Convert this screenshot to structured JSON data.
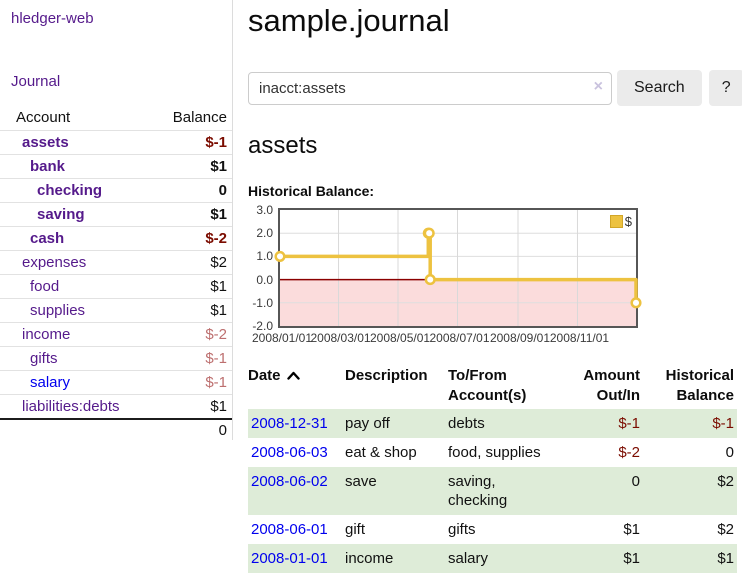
{
  "colors": {
    "link_purple": "#551a8b",
    "link_blue": "#0000ee",
    "negative_strong": "#7b0c00",
    "negative_muted": "#bd6f6f",
    "row_green": "#deecd8",
    "series_gold": "#edc240",
    "negative_region_pink": "#fbdcdc",
    "zero_line_red": "#8b0000"
  },
  "sidebar": {
    "app_title": "hledger-web",
    "nav_journal": "Journal",
    "header": {
      "account": "Account",
      "balance": "Balance"
    },
    "accounts": [
      {
        "label": "assets",
        "level": 1,
        "bold": true,
        "balance": "$-1",
        "balance_class": "neg-strong",
        "link": "visited"
      },
      {
        "label": "bank",
        "level": 2,
        "bold": true,
        "balance": "$1",
        "balance_class": "normal",
        "link": "visited"
      },
      {
        "label": "checking",
        "level": 3,
        "bold": true,
        "balance": "0",
        "balance_class": "normal",
        "link": "visited"
      },
      {
        "label": "saving",
        "level": 3,
        "bold": true,
        "balance": "$1",
        "balance_class": "normal",
        "link": "visited"
      },
      {
        "label": "cash",
        "level": 2,
        "bold": true,
        "balance": "$-2",
        "balance_class": "neg-strong",
        "link": "visited"
      },
      {
        "label": "expenses",
        "level": 1,
        "bold": false,
        "balance": "$2",
        "balance_class": "normal",
        "link": "visited"
      },
      {
        "label": "food",
        "level": 2,
        "bold": false,
        "balance": "$1",
        "balance_class": "normal",
        "link": "visited"
      },
      {
        "label": "supplies",
        "level": 2,
        "bold": false,
        "balance": "$1",
        "balance_class": "normal",
        "link": "visited"
      },
      {
        "label": "income",
        "level": 1,
        "bold": false,
        "balance": "$-2",
        "balance_class": "neg-muted",
        "link": "visited"
      },
      {
        "label": "gifts",
        "level": 2,
        "bold": false,
        "balance": "$-1",
        "balance_class": "neg-muted",
        "link": "visited"
      },
      {
        "label": "salary",
        "level": 2,
        "bold": false,
        "balance": "$-1",
        "balance_class": "neg-muted",
        "link": "unvisited"
      },
      {
        "label": "liabilities:debts",
        "level": 1,
        "bold": false,
        "balance": "$1",
        "balance_class": "normal",
        "link": "visited"
      }
    ],
    "total_balance": "0"
  },
  "main": {
    "title": "sample.journal",
    "search": {
      "value": "inacct:assets",
      "clear_icon": "×",
      "button_label": "Search",
      "help_label": "?"
    },
    "account_heading": "assets",
    "chart_label": "Historical Balance:",
    "chart_data": {
      "type": "line",
      "title": "Historical Balance",
      "step": true,
      "series": [
        {
          "name": "$",
          "color": "#edc240",
          "points": [
            [
              "2008-01-01",
              1
            ],
            [
              "2008-06-01",
              2
            ],
            [
              "2008-06-02",
              2
            ],
            [
              "2008-06-03",
              0
            ],
            [
              "2008-12-31",
              -1
            ]
          ]
        }
      ],
      "x_range": [
        "2008-01-01",
        "2008-12-31"
      ],
      "ylim": [
        -2,
        3
      ],
      "y_ticks": [
        "3.0",
        "2.0",
        "1.0",
        "0.0",
        "-1.0",
        "-2.0"
      ],
      "x_ticks": [
        "2008/01/01",
        "2008/03/01",
        "2008/05/01",
        "2008/07/01",
        "2008/09/01",
        "2008/11/01"
      ],
      "grid": true,
      "legend_position": "top-right",
      "negative_region_color": "#fbdcdc",
      "zero_line_color": "#8b0000"
    },
    "register_table": {
      "columns": [
        {
          "label": "Date",
          "align": "left",
          "sort": "asc"
        },
        {
          "label": "Description",
          "align": "left"
        },
        {
          "label": "To/From Account(s)",
          "align": "left"
        },
        {
          "label": "Amount Out/In",
          "align": "right"
        },
        {
          "label": "Historical Balance",
          "align": "right"
        }
      ],
      "rows": [
        {
          "date": "2008-12-31",
          "description": "pay off",
          "accounts": "debts",
          "amount": "$-1",
          "balance": "$-1"
        },
        {
          "date": "2008-06-03",
          "description": "eat & shop",
          "accounts": "food, supplies",
          "amount": "$-2",
          "balance": "0"
        },
        {
          "date": "2008-06-02",
          "description": "save",
          "accounts": "saving,\nchecking",
          "amount": "0",
          "balance": "$2"
        },
        {
          "date": "2008-06-01",
          "description": "gift",
          "accounts": "gifts",
          "amount": "$1",
          "balance": "$2"
        },
        {
          "date": "2008-01-01",
          "description": "income",
          "accounts": "salary",
          "amount": "$1",
          "balance": "$1"
        }
      ]
    }
  }
}
